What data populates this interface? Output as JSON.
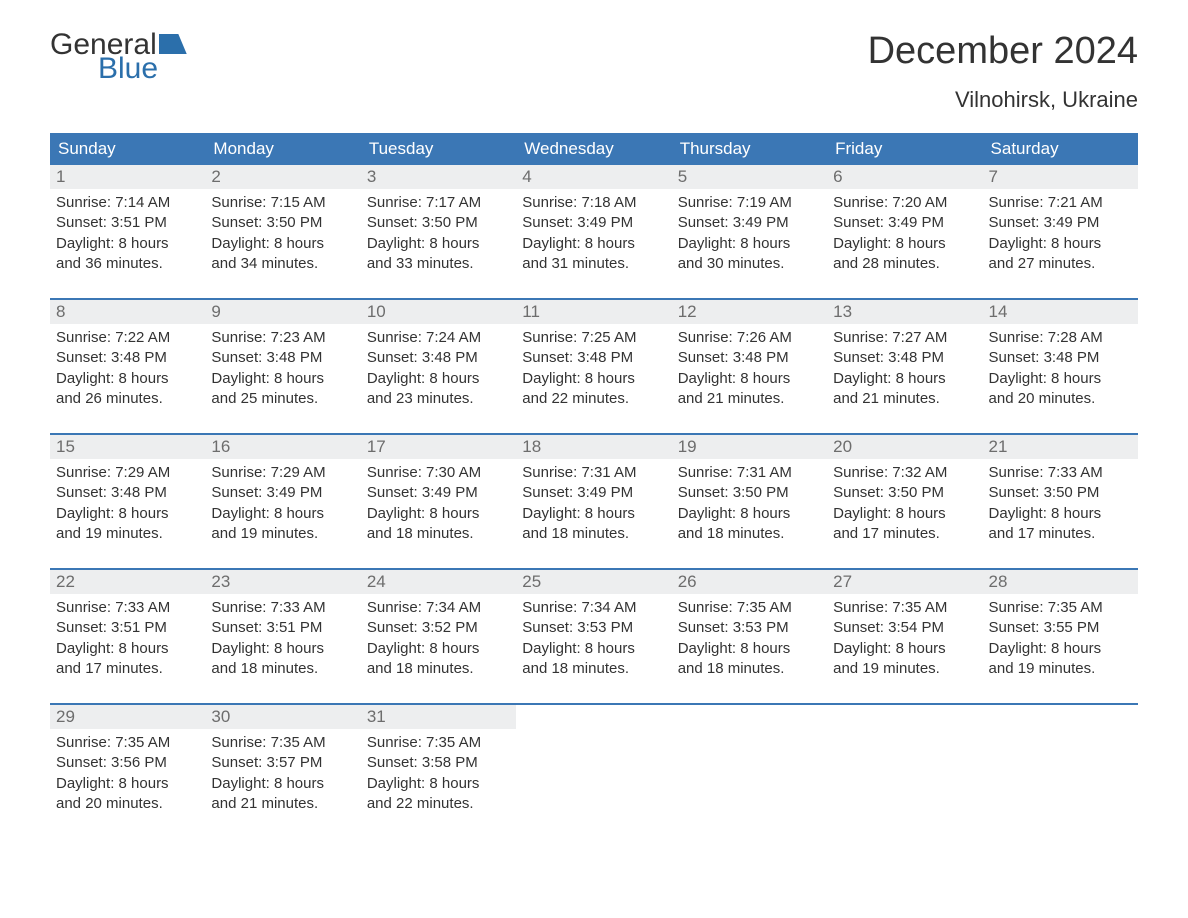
{
  "logo": {
    "line1": "General",
    "line2": "Blue"
  },
  "title": "December 2024",
  "location": "Vilnohirsk, Ukraine",
  "colors": {
    "header_bg": "#3b77b5",
    "header_text": "#ffffff",
    "daynum_bg": "#edeeef",
    "daynum_text": "#6d6d6d",
    "body_text": "#333333",
    "rule": "#3b77b5",
    "logo_blue": "#2b6fab"
  },
  "dayNames": [
    "Sunday",
    "Monday",
    "Tuesday",
    "Wednesday",
    "Thursday",
    "Friday",
    "Saturday"
  ],
  "weeks": [
    [
      {
        "n": "1",
        "sunrise": "Sunrise: 7:14 AM",
        "sunset": "Sunset: 3:51 PM",
        "d1": "Daylight: 8 hours",
        "d2": "and 36 minutes."
      },
      {
        "n": "2",
        "sunrise": "Sunrise: 7:15 AM",
        "sunset": "Sunset: 3:50 PM",
        "d1": "Daylight: 8 hours",
        "d2": "and 34 minutes."
      },
      {
        "n": "3",
        "sunrise": "Sunrise: 7:17 AM",
        "sunset": "Sunset: 3:50 PM",
        "d1": "Daylight: 8 hours",
        "d2": "and 33 minutes."
      },
      {
        "n": "4",
        "sunrise": "Sunrise: 7:18 AM",
        "sunset": "Sunset: 3:49 PM",
        "d1": "Daylight: 8 hours",
        "d2": "and 31 minutes."
      },
      {
        "n": "5",
        "sunrise": "Sunrise: 7:19 AM",
        "sunset": "Sunset: 3:49 PM",
        "d1": "Daylight: 8 hours",
        "d2": "and 30 minutes."
      },
      {
        "n": "6",
        "sunrise": "Sunrise: 7:20 AM",
        "sunset": "Sunset: 3:49 PM",
        "d1": "Daylight: 8 hours",
        "d2": "and 28 minutes."
      },
      {
        "n": "7",
        "sunrise": "Sunrise: 7:21 AM",
        "sunset": "Sunset: 3:49 PM",
        "d1": "Daylight: 8 hours",
        "d2": "and 27 minutes."
      }
    ],
    [
      {
        "n": "8",
        "sunrise": "Sunrise: 7:22 AM",
        "sunset": "Sunset: 3:48 PM",
        "d1": "Daylight: 8 hours",
        "d2": "and 26 minutes."
      },
      {
        "n": "9",
        "sunrise": "Sunrise: 7:23 AM",
        "sunset": "Sunset: 3:48 PM",
        "d1": "Daylight: 8 hours",
        "d2": "and 25 minutes."
      },
      {
        "n": "10",
        "sunrise": "Sunrise: 7:24 AM",
        "sunset": "Sunset: 3:48 PM",
        "d1": "Daylight: 8 hours",
        "d2": "and 23 minutes."
      },
      {
        "n": "11",
        "sunrise": "Sunrise: 7:25 AM",
        "sunset": "Sunset: 3:48 PM",
        "d1": "Daylight: 8 hours",
        "d2": "and 22 minutes."
      },
      {
        "n": "12",
        "sunrise": "Sunrise: 7:26 AM",
        "sunset": "Sunset: 3:48 PM",
        "d1": "Daylight: 8 hours",
        "d2": "and 21 minutes."
      },
      {
        "n": "13",
        "sunrise": "Sunrise: 7:27 AM",
        "sunset": "Sunset: 3:48 PM",
        "d1": "Daylight: 8 hours",
        "d2": "and 21 minutes."
      },
      {
        "n": "14",
        "sunrise": "Sunrise: 7:28 AM",
        "sunset": "Sunset: 3:48 PM",
        "d1": "Daylight: 8 hours",
        "d2": "and 20 minutes."
      }
    ],
    [
      {
        "n": "15",
        "sunrise": "Sunrise: 7:29 AM",
        "sunset": "Sunset: 3:48 PM",
        "d1": "Daylight: 8 hours",
        "d2": "and 19 minutes."
      },
      {
        "n": "16",
        "sunrise": "Sunrise: 7:29 AM",
        "sunset": "Sunset: 3:49 PM",
        "d1": "Daylight: 8 hours",
        "d2": "and 19 minutes."
      },
      {
        "n": "17",
        "sunrise": "Sunrise: 7:30 AM",
        "sunset": "Sunset: 3:49 PM",
        "d1": "Daylight: 8 hours",
        "d2": "and 18 minutes."
      },
      {
        "n": "18",
        "sunrise": "Sunrise: 7:31 AM",
        "sunset": "Sunset: 3:49 PM",
        "d1": "Daylight: 8 hours",
        "d2": "and 18 minutes."
      },
      {
        "n": "19",
        "sunrise": "Sunrise: 7:31 AM",
        "sunset": "Sunset: 3:50 PM",
        "d1": "Daylight: 8 hours",
        "d2": "and 18 minutes."
      },
      {
        "n": "20",
        "sunrise": "Sunrise: 7:32 AM",
        "sunset": "Sunset: 3:50 PM",
        "d1": "Daylight: 8 hours",
        "d2": "and 17 minutes."
      },
      {
        "n": "21",
        "sunrise": "Sunrise: 7:33 AM",
        "sunset": "Sunset: 3:50 PM",
        "d1": "Daylight: 8 hours",
        "d2": "and 17 minutes."
      }
    ],
    [
      {
        "n": "22",
        "sunrise": "Sunrise: 7:33 AM",
        "sunset": "Sunset: 3:51 PM",
        "d1": "Daylight: 8 hours",
        "d2": "and 17 minutes."
      },
      {
        "n": "23",
        "sunrise": "Sunrise: 7:33 AM",
        "sunset": "Sunset: 3:51 PM",
        "d1": "Daylight: 8 hours",
        "d2": "and 18 minutes."
      },
      {
        "n": "24",
        "sunrise": "Sunrise: 7:34 AM",
        "sunset": "Sunset: 3:52 PM",
        "d1": "Daylight: 8 hours",
        "d2": "and 18 minutes."
      },
      {
        "n": "25",
        "sunrise": "Sunrise: 7:34 AM",
        "sunset": "Sunset: 3:53 PM",
        "d1": "Daylight: 8 hours",
        "d2": "and 18 minutes."
      },
      {
        "n": "26",
        "sunrise": "Sunrise: 7:35 AM",
        "sunset": "Sunset: 3:53 PM",
        "d1": "Daylight: 8 hours",
        "d2": "and 18 minutes."
      },
      {
        "n": "27",
        "sunrise": "Sunrise: 7:35 AM",
        "sunset": "Sunset: 3:54 PM",
        "d1": "Daylight: 8 hours",
        "d2": "and 19 minutes."
      },
      {
        "n": "28",
        "sunrise": "Sunrise: 7:35 AM",
        "sunset": "Sunset: 3:55 PM",
        "d1": "Daylight: 8 hours",
        "d2": "and 19 minutes."
      }
    ],
    [
      {
        "n": "29",
        "sunrise": "Sunrise: 7:35 AM",
        "sunset": "Sunset: 3:56 PM",
        "d1": "Daylight: 8 hours",
        "d2": "and 20 minutes."
      },
      {
        "n": "30",
        "sunrise": "Sunrise: 7:35 AM",
        "sunset": "Sunset: 3:57 PM",
        "d1": "Daylight: 8 hours",
        "d2": "and 21 minutes."
      },
      {
        "n": "31",
        "sunrise": "Sunrise: 7:35 AM",
        "sunset": "Sunset: 3:58 PM",
        "d1": "Daylight: 8 hours",
        "d2": "and 22 minutes."
      },
      {
        "empty": true
      },
      {
        "empty": true
      },
      {
        "empty": true
      },
      {
        "empty": true
      }
    ]
  ]
}
